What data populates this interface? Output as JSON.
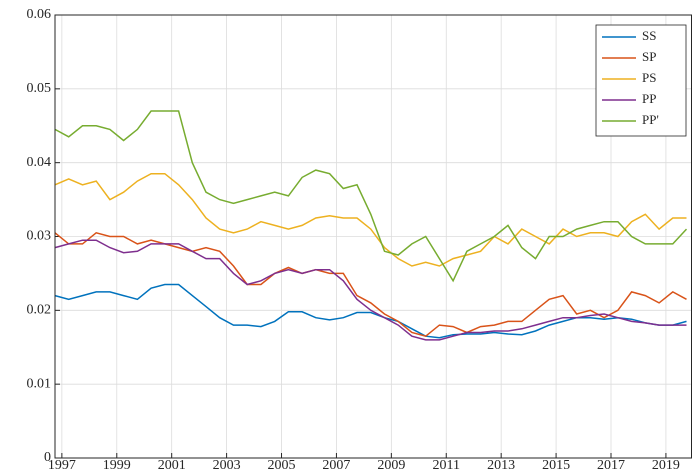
{
  "chart_data": {
    "type": "line",
    "x": [
      1996.75,
      1997.25,
      1997.75,
      1998.25,
      1998.75,
      1999.25,
      1999.75,
      2000.25,
      2000.75,
      2001.25,
      2001.75,
      2002.25,
      2002.75,
      2003.25,
      2003.75,
      2004.25,
      2004.75,
      2005.25,
      2005.75,
      2006.25,
      2006.75,
      2007.25,
      2007.75,
      2008.25,
      2008.75,
      2009.25,
      2009.75,
      2010.25,
      2010.75,
      2011.25,
      2011.75,
      2012.25,
      2012.75,
      2013.25,
      2013.75,
      2014.25,
      2014.75,
      2015.25,
      2015.75,
      2016.25,
      2016.75,
      2017.25,
      2017.75,
      2018.25,
      2018.75,
      2019.25,
      2019.75
    ],
    "series": [
      {
        "name": "SS",
        "color": "#0072bd",
        "values": [
          0.022,
          0.0215,
          0.022,
          0.0225,
          0.0225,
          0.022,
          0.0215,
          0.023,
          0.0235,
          0.0235,
          0.022,
          0.0205,
          0.019,
          0.018,
          0.018,
          0.0178,
          0.0185,
          0.0198,
          0.0198,
          0.019,
          0.0187,
          0.019,
          0.0197,
          0.0197,
          0.019,
          0.0185,
          0.0175,
          0.0165,
          0.0163,
          0.0167,
          0.0168,
          0.0168,
          0.017,
          0.0168,
          0.0167,
          0.0172,
          0.018,
          0.0185,
          0.019,
          0.019,
          0.0188,
          0.019,
          0.0188,
          0.0183,
          0.018,
          0.018,
          0.0185
        ]
      },
      {
        "name": "SP",
        "color": "#d95319",
        "values": [
          0.0305,
          0.029,
          0.029,
          0.0305,
          0.03,
          0.03,
          0.029,
          0.0295,
          0.029,
          0.0285,
          0.028,
          0.0285,
          0.028,
          0.026,
          0.0235,
          0.0235,
          0.025,
          0.0258,
          0.025,
          0.0255,
          0.025,
          0.025,
          0.022,
          0.021,
          0.0195,
          0.0185,
          0.017,
          0.0165,
          0.018,
          0.0178,
          0.017,
          0.0178,
          0.018,
          0.0185,
          0.0185,
          0.02,
          0.0215,
          0.022,
          0.0195,
          0.02,
          0.019,
          0.02,
          0.0225,
          0.022,
          0.021,
          0.0225,
          0.0215
        ]
      },
      {
        "name": "PS",
        "color": "#edb120",
        "values": [
          0.037,
          0.0378,
          0.037,
          0.0375,
          0.035,
          0.036,
          0.0375,
          0.0385,
          0.0385,
          0.037,
          0.035,
          0.0325,
          0.031,
          0.0305,
          0.031,
          0.032,
          0.0315,
          0.031,
          0.0315,
          0.0325,
          0.0328,
          0.0325,
          0.0325,
          0.031,
          0.0285,
          0.027,
          0.026,
          0.0265,
          0.026,
          0.027,
          0.0275,
          0.028,
          0.03,
          0.029,
          0.031,
          0.03,
          0.029,
          0.031,
          0.03,
          0.0305,
          0.0305,
          0.03,
          0.032,
          0.033,
          0.031,
          0.0325,
          0.0325
        ]
      },
      {
        "name": "PP",
        "color": "#7e2f8e",
        "values": [
          0.0285,
          0.029,
          0.0295,
          0.0295,
          0.0285,
          0.0278,
          0.028,
          0.029,
          0.029,
          0.029,
          0.028,
          0.027,
          0.027,
          0.025,
          0.0235,
          0.024,
          0.025,
          0.0255,
          0.025,
          0.0255,
          0.0255,
          0.024,
          0.0215,
          0.02,
          0.019,
          0.018,
          0.0165,
          0.016,
          0.016,
          0.0165,
          0.017,
          0.017,
          0.0172,
          0.0172,
          0.0175,
          0.018,
          0.0185,
          0.019,
          0.019,
          0.0193,
          0.0195,
          0.019,
          0.0185,
          0.0183,
          0.018,
          0.018,
          0.018
        ]
      },
      {
        "name": "PP'",
        "color": "#77ac30",
        "values": [
          0.0445,
          0.0435,
          0.045,
          0.045,
          0.0445,
          0.043,
          0.0445,
          0.047,
          0.047,
          0.047,
          0.04,
          0.036,
          0.035,
          0.0345,
          0.035,
          0.0355,
          0.036,
          0.0355,
          0.038,
          0.039,
          0.0385,
          0.0365,
          0.037,
          0.033,
          0.028,
          0.0275,
          0.029,
          0.03,
          0.027,
          0.024,
          0.028,
          0.029,
          0.03,
          0.0315,
          0.0285,
          0.027,
          0.03,
          0.03,
          0.031,
          0.0315,
          0.032,
          0.032,
          0.03,
          0.029,
          0.029,
          0.029,
          0.031
        ]
      }
    ],
    "xlim": [
      1996.75,
      2019.95
    ],
    "xticks": [
      1997,
      1999,
      2001,
      2003,
      2005,
      2007,
      2009,
      2011,
      2013,
      2015,
      2017,
      2019
    ],
    "ylim": [
      0,
      0.06
    ],
    "yticks": [
      0,
      0.01,
      0.02,
      0.03,
      0.04,
      0.05,
      0.06
    ],
    "grid": true,
    "legend": "top-right"
  }
}
